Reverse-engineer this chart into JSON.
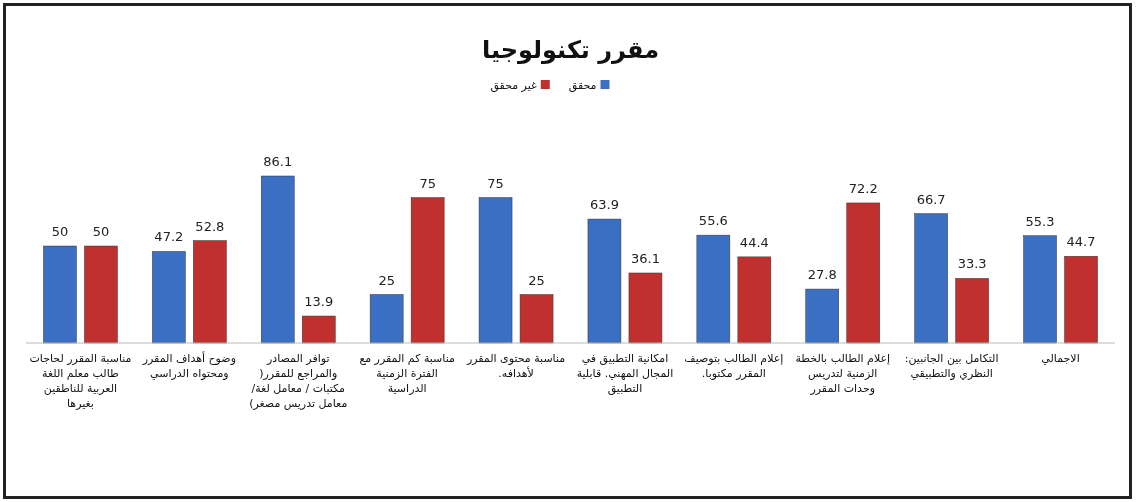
{
  "chart_data": {
    "type": "bar",
    "title": "مقرر تكنولوجيا",
    "categories": [
      "مناسبة المقرر لحاجات طالب معلم اللغة العربية للناطقين بغيرها",
      "وضوح أهداف المقرر ومحتواه الدراسي",
      "توافر المصادر والمراجع للمقرر( مكتبات / معامل لغة/ معامل تدريس مصغر)",
      "مناسبة كم المقرر مع الفترة الزمنية الدراسية",
      "مناسبة محتوى المقرر لأهدافه.",
      "امكانية التطبيق في المجال المهني. قابلية التطبيق",
      "إعلام الطالب بتوصيف المقرر مكتوبا.",
      "إعلام الطالب بالخطة الزمنية لتدريس وحدات المقرر",
      "التكامل بين الجانبين: النظري والتطبيقي",
      "الاجمالي"
    ],
    "series": [
      {
        "name": "محقق",
        "color": "#3b6fc4",
        "values": [
          50,
          47.2,
          86.1,
          25,
          75,
          63.9,
          55.6,
          27.8,
          66.7,
          55.3
        ]
      },
      {
        "name": "غير محقق",
        "color": "#c0302e",
        "values": [
          50,
          52.8,
          13.9,
          75,
          25,
          36.1,
          44.4,
          72.2,
          33.3,
          44.7
        ]
      }
    ],
    "data_labels": true,
    "legend": "top"
  }
}
